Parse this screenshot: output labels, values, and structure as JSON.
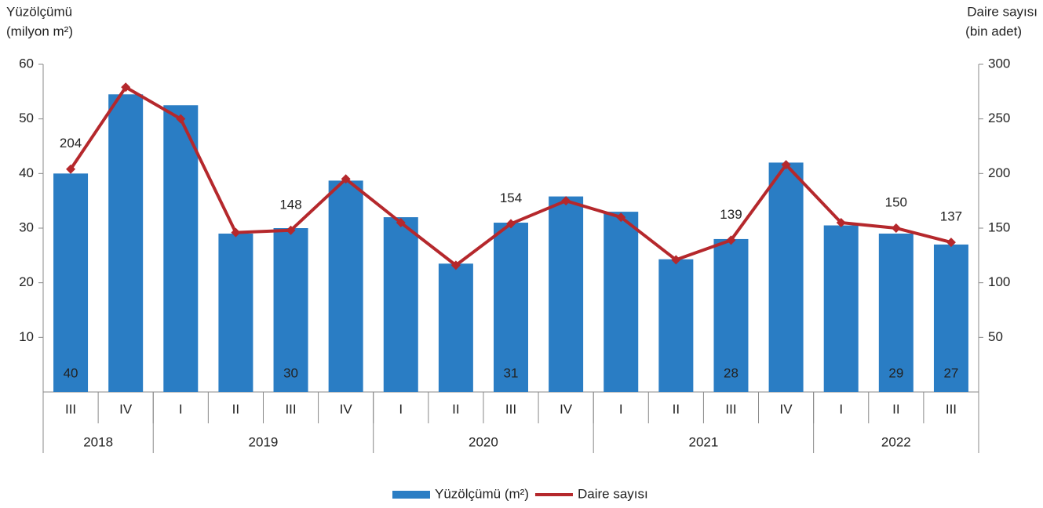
{
  "chart_data": {
    "type": "bar_line",
    "ylabel": [
      "Yüzölçümü",
      "(milyon m²)"
    ],
    "y2label": [
      "Daire sayısı",
      "(bin adet)"
    ],
    "categories": [
      "III",
      "IV",
      "I",
      "II",
      "III",
      "IV",
      "I",
      "II",
      "III",
      "IV",
      "I",
      "II",
      "III",
      "IV",
      "I",
      "II",
      "III"
    ],
    "category_groups": [
      {
        "name": "2018",
        "span": 2
      },
      {
        "name": "2019",
        "span": 4
      },
      {
        "name": "2020",
        "span": 4
      },
      {
        "name": "2021",
        "span": 4
      },
      {
        "name": "2022",
        "span": 3
      }
    ],
    "series": [
      {
        "name": "Yüzölçümü (m²)",
        "type": "bar",
        "color": "#2a7dc4",
        "axis": "y",
        "values": [
          40,
          54.5,
          52.5,
          29,
          30,
          38.7,
          32,
          23.5,
          31,
          35.8,
          33,
          24.3,
          28,
          42,
          30.5,
          29,
          27
        ]
      },
      {
        "name": "Daire sayısı",
        "type": "line",
        "color": "#b5282c",
        "axis": "y2",
        "values": [
          204,
          279,
          250,
          146,
          148,
          195,
          155,
          116,
          154,
          175,
          160,
          121,
          139,
          208,
          155,
          150,
          137
        ]
      }
    ],
    "label_indices": [
      0,
      4,
      8,
      12,
      15,
      16
    ],
    "ylim": [
      0,
      60
    ],
    "yticks": [
      10,
      20,
      30,
      40,
      50,
      60
    ],
    "y2lim": [
      0,
      300
    ],
    "y2ticks": [
      50,
      100,
      150,
      200,
      250,
      300
    ],
    "legend": "bottom"
  }
}
